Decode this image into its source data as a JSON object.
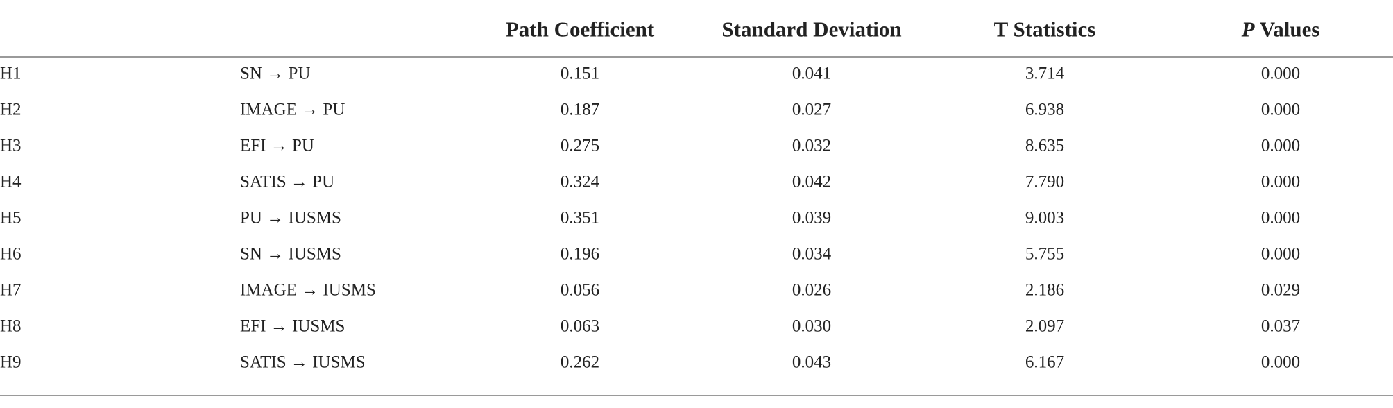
{
  "table": {
    "header": [
      "Path Coefficient",
      "Standard Deviation",
      "T Statistics",
      "P Values"
    ],
    "rows": [
      [
        "H1",
        "SN → PU",
        "0.151",
        "0.041",
        "3.714",
        "0.000"
      ],
      [
        "H2",
        "IMAGE → PU",
        "0.187",
        "0.027",
        "6.938",
        "0.000"
      ],
      [
        "H3",
        "EFI → PU",
        "0.275",
        "0.032",
        "8.635",
        "0.000"
      ],
      [
        "H4",
        "SATIS → PU",
        "0.324",
        "0.042",
        "7.790",
        "0.000"
      ],
      [
        "H5",
        "PU → IUSMS",
        "0.351",
        "0.039",
        "9.003",
        "0.000"
      ],
      [
        "H6",
        "SN → IUSMS",
        "0.196",
        "0.034",
        "5.755",
        "0.000"
      ],
      [
        "H7",
        "IMAGE → IUSMS",
        "0.056",
        "0.026",
        "2.186",
        "0.029"
      ],
      [
        "H8",
        "EFI → IUSMS",
        "0.063",
        "0.030",
        "2.097",
        "0.037"
      ],
      [
        "H9",
        "SATIS → IUSMS",
        "0.262",
        "0.043",
        "6.167",
        "0.000"
      ]
    ]
  }
}
